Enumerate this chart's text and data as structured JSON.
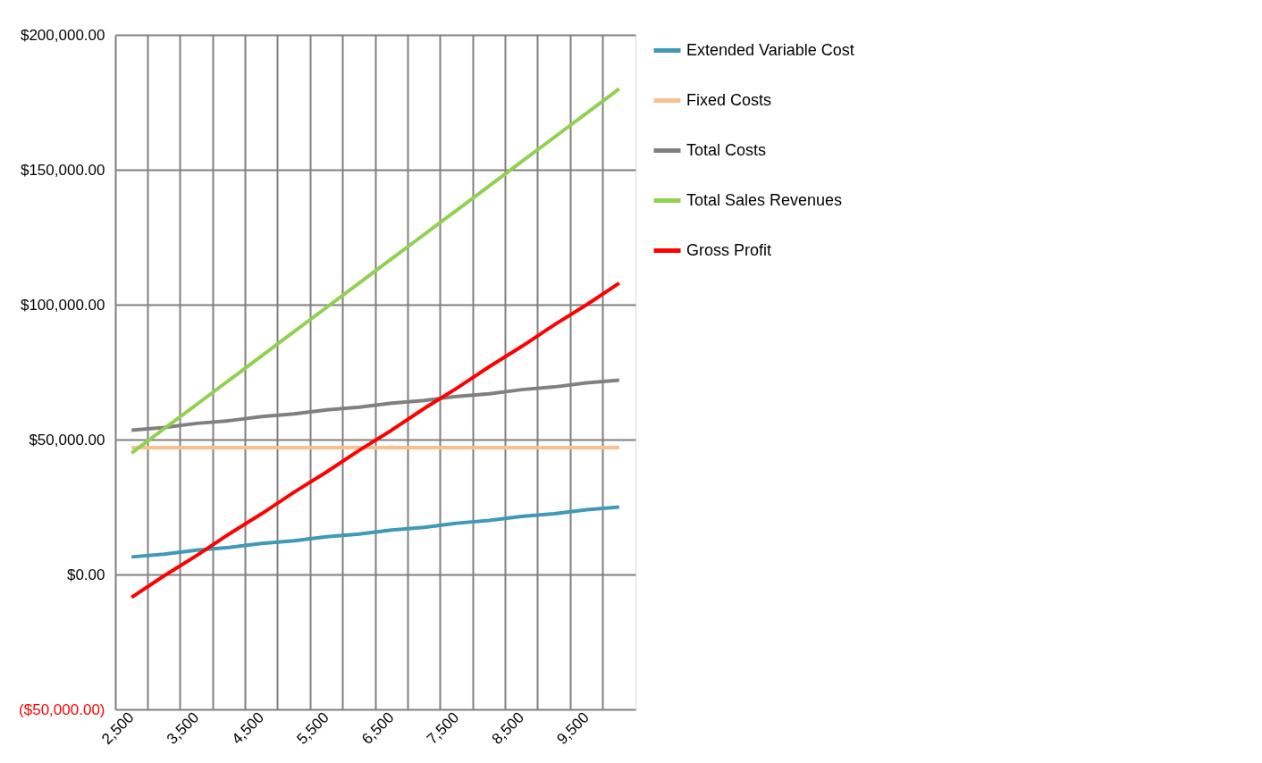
{
  "chart_data": {
    "type": "line",
    "categories": [
      "2,500",
      null,
      "3,500",
      null,
      "4,500",
      null,
      "5,500",
      null,
      "6,500",
      null,
      "7,500",
      null,
      "8,500",
      null,
      "9,500",
      null
    ],
    "series": [
      {
        "name": "Extended Variable Cost",
        "color": "#4099b5",
        "values": [
          6500,
          7500,
          9000,
          10000,
          11500,
          12500,
          14000,
          15000,
          16500,
          17500,
          19000,
          20000,
          21500,
          22500,
          24000,
          25000
        ]
      },
      {
        "name": "Fixed Costs",
        "color": "#f9bf8f",
        "values": [
          47000,
          47000,
          47000,
          47000,
          47000,
          47000,
          47000,
          47000,
          47000,
          47000,
          47000,
          47000,
          47000,
          47000,
          47000,
          47000
        ]
      },
      {
        "name": "Total Costs",
        "color": "#808080",
        "values": [
          53500,
          54500,
          56000,
          57000,
          58500,
          59500,
          61000,
          62000,
          63500,
          64500,
          66000,
          67000,
          68500,
          69500,
          71000,
          72000
        ]
      },
      {
        "name": "Total Sales Revenues",
        "color": "#92d050",
        "values": [
          45000,
          54000,
          63000,
          72000,
          81000,
          90000,
          99000,
          108000,
          117000,
          126000,
          135000,
          144000,
          153000,
          162000,
          171000,
          180000
        ]
      },
      {
        "name": "Gross Profit",
        "color": "#ff0000",
        "values": [
          -8500,
          -500,
          7000,
          15000,
          22500,
          30500,
          38000,
          46000,
          53500,
          61500,
          69000,
          77000,
          84500,
          92500,
          100000,
          108000
        ]
      }
    ],
    "ylim": [
      -50000,
      200000
    ],
    "yticks": [
      {
        "value": -50000,
        "label": "($50,000.00)"
      },
      {
        "value": 0,
        "label": "$0.00"
      },
      {
        "value": 50000,
        "label": "$50,000.00"
      },
      {
        "value": 100000,
        "label": "$100,000.00"
      },
      {
        "value": 150000,
        "label": "$150,000.00"
      },
      {
        "value": 200000,
        "label": "$200,000.00"
      }
    ],
    "grid": true,
    "legend": "right",
    "marker": "none",
    "line_style": "solid"
  }
}
